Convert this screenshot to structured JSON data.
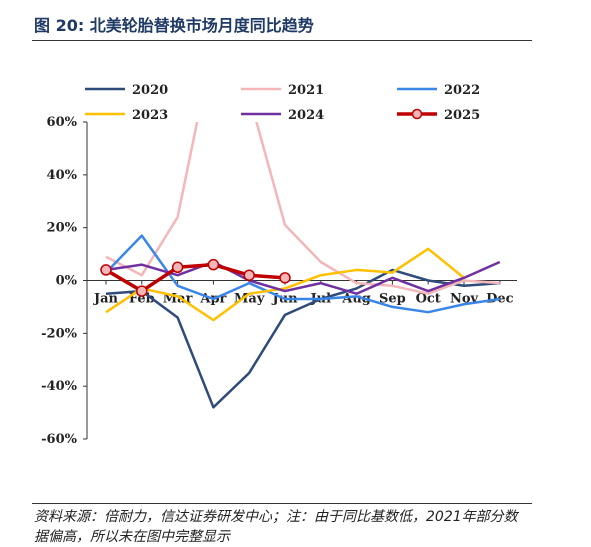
{
  "title": "图 20: 北美轮胎替换市场月度同比趋势",
  "source": "资料来源：倍耐力，信达证券研发中心；注：由于同比基数低，2021年部分数据偏高，所以未在图中完整显示",
  "chart_data": {
    "type": "line",
    "categories": [
      "Jan",
      "Feb",
      "Mar",
      "Apr",
      "May",
      "Jun",
      "Jul",
      "Aug",
      "Sep",
      "Oct",
      "Nov",
      "Dec"
    ],
    "ylim": [
      -60,
      60
    ],
    "yticks": [
      60,
      40,
      20,
      0,
      -20,
      -40,
      -60
    ],
    "ytick_labels": [
      "60%",
      "40%",
      "20%",
      "0%",
      "-20%",
      "-40%",
      "-60%"
    ],
    "legend_placement": "top",
    "series": [
      {
        "name": "2020",
        "color": "#2f4b7c",
        "marker": false,
        "values": [
          -5,
          -4,
          -14,
          -48,
          -35,
          -13,
          -7,
          -3,
          4,
          0,
          -2,
          -1
        ]
      },
      {
        "name": "2021",
        "color": "#f4b6b8",
        "marker": false,
        "values": [
          9,
          2,
          24,
          90,
          70,
          21,
          7,
          -1,
          -2,
          -5,
          0,
          -1
        ]
      },
      {
        "name": "2022",
        "color": "#3a86e8",
        "marker": false,
        "values": [
          3,
          17,
          -2,
          -7,
          -1,
          -7,
          -7,
          -6,
          -10,
          -12,
          -9,
          -7
        ]
      },
      {
        "name": "2023",
        "color": "#ffc000",
        "marker": false,
        "values": [
          -12,
          -3,
          -6,
          -15,
          -5,
          -3,
          2,
          4,
          3,
          12,
          1,
          null
        ]
      },
      {
        "name": "2024",
        "color": "#7030a0",
        "marker": false,
        "values": [
          4,
          6,
          2,
          7,
          0,
          -4,
          -1,
          -5,
          1,
          -4,
          1,
          7
        ]
      },
      {
        "name": "2025",
        "color": "#c00000",
        "marker": true,
        "values": [
          4,
          -4,
          5,
          6,
          2,
          1,
          null,
          null,
          null,
          null,
          null,
          null
        ]
      }
    ]
  }
}
